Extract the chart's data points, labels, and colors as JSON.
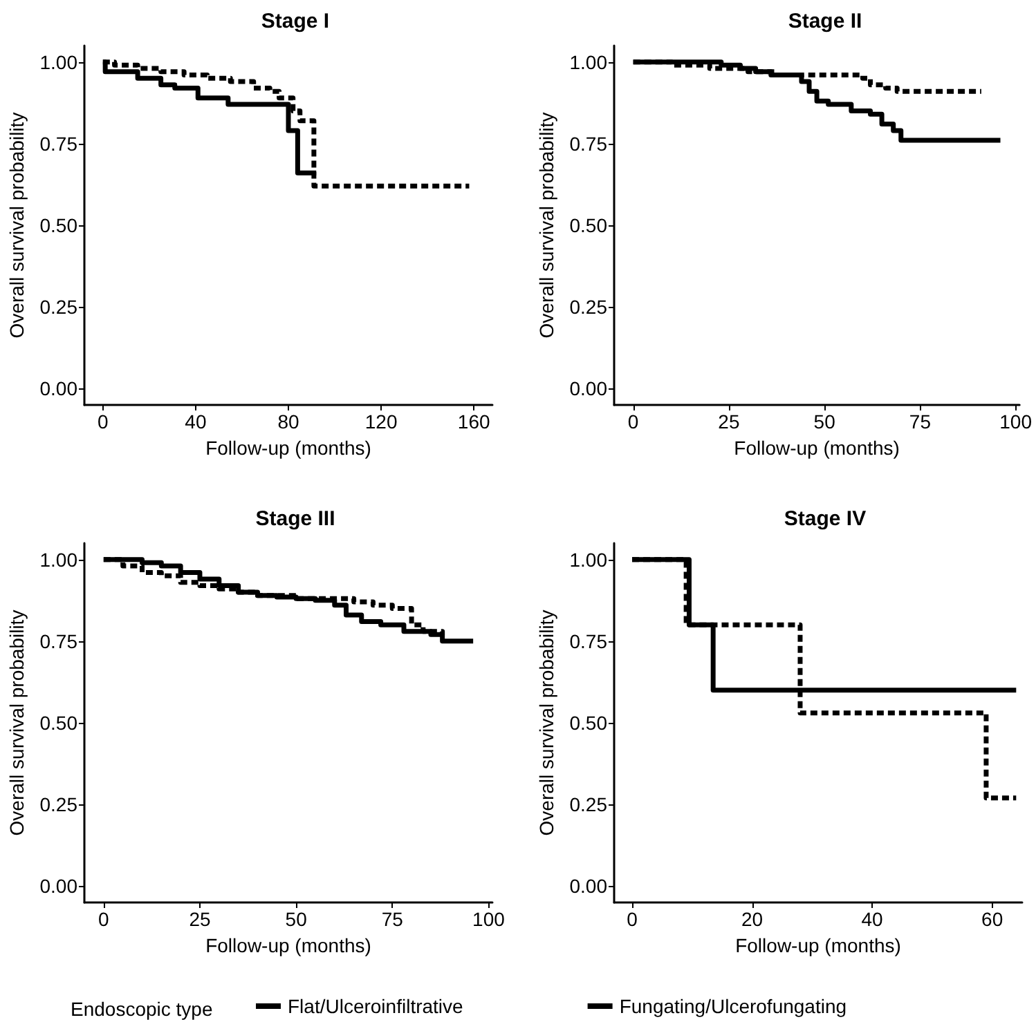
{
  "chart_data": [
    {
      "type": "step",
      "title": "Stage I",
      "xlabel": "Follow-up (months)",
      "ylabel": "Overall survival probability",
      "xlim": [
        -8,
        168
      ],
      "xticks": [
        0,
        40,
        80,
        120,
        160
      ],
      "ylim": [
        -0.05,
        1.05
      ],
      "yticks": [
        {
          "value": 0,
          "label": "0.00"
        },
        {
          "value": 0.25,
          "label": "0.25"
        },
        {
          "value": 0.5,
          "label": "0.50"
        },
        {
          "value": 0.75,
          "label": "0.75"
        },
        {
          "value": 1,
          "label": "1.00"
        }
      ],
      "legend": "bottom",
      "legend_title": "Endoscopic type",
      "series": [
        {
          "name": "Flat/Ulceroinfiltrative",
          "color": "#000000",
          "line_style": "solid",
          "x": [
            0,
            1,
            15,
            25,
            31,
            41,
            54,
            80,
            84,
            92
          ],
          "values": [
            1,
            0.97,
            0.95,
            0.93,
            0.92,
            0.89,
            0.87,
            0.79,
            0.66,
            0.66
          ]
        },
        {
          "name": "Fungating/Ulcerofungating",
          "color": "#000000",
          "line_style": "dashed",
          "x": [
            0,
            5,
            15,
            25,
            35,
            45,
            55,
            65,
            72,
            76,
            82,
            85,
            91,
            158
          ],
          "values": [
            1,
            0.99,
            0.98,
            0.97,
            0.96,
            0.95,
            0.94,
            0.92,
            0.91,
            0.89,
            0.85,
            0.82,
            0.62,
            0.62
          ]
        }
      ]
    },
    {
      "type": "step",
      "title": "Stage II",
      "xlabel": "Follow-up (months)",
      "ylabel": "Overall survival probability",
      "xlim": [
        -5,
        101
      ],
      "xticks": [
        0,
        25,
        50,
        75,
        100
      ],
      "ylim": [
        -0.05,
        1.05
      ],
      "yticks": [
        {
          "value": 0,
          "label": "0.00"
        },
        {
          "value": 0.25,
          "label": "0.25"
        },
        {
          "value": 0.5,
          "label": "0.50"
        },
        {
          "value": 0.75,
          "label": "0.75"
        },
        {
          "value": 1,
          "label": "1.00"
        }
      ],
      "legend": false,
      "series": [
        {
          "color": "#000000",
          "line_style": "solid",
          "x": [
            0,
            23,
            28,
            32,
            36,
            44,
            46,
            48,
            51,
            57,
            62,
            65,
            68,
            70,
            96
          ],
          "values": [
            1,
            0.99,
            0.98,
            0.97,
            0.96,
            0.94,
            0.91,
            0.88,
            0.87,
            0.85,
            0.84,
            0.81,
            0.79,
            0.76,
            0.76
          ]
        },
        {
          "color": "#000000",
          "line_style": "dashed",
          "x": [
            0,
            10,
            20,
            30,
            37,
            60,
            62,
            66,
            69,
            91
          ],
          "values": [
            1,
            0.99,
            0.98,
            0.97,
            0.96,
            0.95,
            0.93,
            0.92,
            0.91,
            0.91
          ]
        }
      ]
    },
    {
      "type": "step",
      "title": "Stage III",
      "xlabel": "Follow-up (months)",
      "ylabel": "Overall survival probability",
      "xlim": [
        -5,
        101
      ],
      "xticks": [
        0,
        25,
        50,
        75,
        100
      ],
      "ylim": [
        -0.05,
        1.05
      ],
      "yticks": [
        {
          "value": 0,
          "label": "0.00"
        },
        {
          "value": 0.25,
          "label": "0.25"
        },
        {
          "value": 0.5,
          "label": "0.50"
        },
        {
          "value": 0.75,
          "label": "0.75"
        },
        {
          "value": 1,
          "label": "1.00"
        }
      ],
      "legend": false,
      "series": [
        {
          "color": "#000000",
          "line_style": "solid",
          "x": [
            0,
            5,
            10,
            15,
            20,
            25,
            30,
            35,
            40,
            45,
            50,
            55,
            60,
            63,
            67,
            72,
            78,
            85,
            88,
            96
          ],
          "values": [
            1,
            1,
            0.99,
            0.98,
            0.96,
            0.94,
            0.92,
            0.9,
            0.89,
            0.885,
            0.88,
            0.875,
            0.86,
            0.83,
            0.81,
            0.8,
            0.78,
            0.77,
            0.75,
            0.75
          ]
        },
        {
          "color": "#000000",
          "line_style": "dashed",
          "x": [
            0,
            5,
            10,
            15,
            20,
            25,
            30,
            35,
            40,
            50,
            60,
            65,
            70,
            75,
            80,
            83,
            88
          ],
          "values": [
            1,
            0.98,
            0.96,
            0.95,
            0.93,
            0.92,
            0.91,
            0.9,
            0.89,
            0.88,
            0.88,
            0.87,
            0.86,
            0.85,
            0.8,
            0.78,
            0.77
          ]
        }
      ]
    },
    {
      "type": "step",
      "title": "Stage IV",
      "xlabel": "Follow-up (months)",
      "ylabel": "Overall survival probability",
      "xlim": [
        -3,
        65
      ],
      "xticks": [
        0,
        20,
        40,
        60
      ],
      "ylim": [
        -0.05,
        1.05
      ],
      "yticks": [
        {
          "value": 0,
          "label": "0.00"
        },
        {
          "value": 0.25,
          "label": "0.25"
        },
        {
          "value": 0.5,
          "label": "0.50"
        },
        {
          "value": 0.75,
          "label": "0.75"
        },
        {
          "value": 1,
          "label": "1.00"
        }
      ],
      "legend": false,
      "series": [
        {
          "color": "#000000",
          "line_style": "solid",
          "x": [
            0,
            9.5,
            13.5,
            64
          ],
          "values": [
            1,
            0.8,
            0.6,
            0.6
          ]
        },
        {
          "color": "#000000",
          "line_style": "dashed",
          "x": [
            0,
            9,
            28,
            59,
            64
          ],
          "values": [
            1,
            0.8,
            0.53,
            0.27,
            0.27
          ]
        }
      ]
    }
  ]
}
